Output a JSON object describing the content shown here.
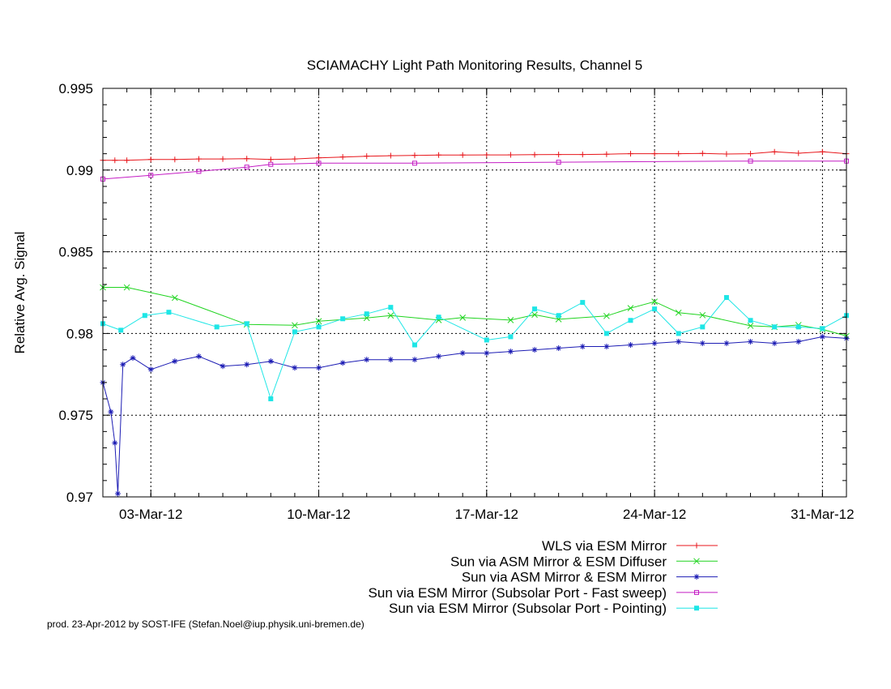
{
  "chart_data": {
    "type": "line",
    "title": "SCIAMACHY Light Path Monitoring Results, Channel 5",
    "xlabel": "",
    "ylabel": "Relative Avg. Signal",
    "xlim": [
      "2012-03-01",
      "2012-04-01"
    ],
    "ylim": [
      0.97,
      0.995
    ],
    "xticks": [
      {
        "date": "2012-03-03",
        "label": "03-Mar-12"
      },
      {
        "date": "2012-03-10",
        "label": "10-Mar-12"
      },
      {
        "date": "2012-03-17",
        "label": "17-Mar-12"
      },
      {
        "date": "2012-03-24",
        "label": "24-Mar-12"
      },
      {
        "date": "2012-03-31",
        "label": "31-Mar-12"
      }
    ],
    "yticks": [
      0.97,
      0.975,
      0.98,
      0.985,
      0.99,
      0.995
    ],
    "ytick_labels": [
      "0.97",
      "0.975",
      "0.98",
      "0.985",
      "0.99",
      "0.995"
    ],
    "grid": true,
    "legend_position": "below",
    "series": [
      {
        "name": "WLS via ESM Mirror",
        "color": "#e8161b",
        "marker": "plus",
        "points": [
          [
            "2012-03-01T00:00",
            0.9906
          ],
          [
            "2012-03-01T12:00",
            0.9906
          ],
          [
            "2012-03-02T00:00",
            0.9906
          ],
          [
            "2012-03-03T00:00",
            0.99065
          ],
          [
            "2012-03-04T00:00",
            0.99065
          ],
          [
            "2012-03-05T00:00",
            0.99068
          ],
          [
            "2012-03-06T00:00",
            0.99068
          ],
          [
            "2012-03-07T00:00",
            0.9907
          ],
          [
            "2012-03-08T00:00",
            0.99065
          ],
          [
            "2012-03-09T00:00",
            0.99068
          ],
          [
            "2012-03-10T00:00",
            0.99075
          ],
          [
            "2012-03-11T00:00",
            0.9908
          ],
          [
            "2012-03-12T00:00",
            0.99085
          ],
          [
            "2012-03-13T00:00",
            0.99088
          ],
          [
            "2012-03-14T00:00",
            0.9909
          ],
          [
            "2012-03-15T00:00",
            0.99092
          ],
          [
            "2012-03-16T00:00",
            0.99092
          ],
          [
            "2012-03-17T00:00",
            0.99093
          ],
          [
            "2012-03-18T00:00",
            0.99093
          ],
          [
            "2012-03-19T00:00",
            0.99094
          ],
          [
            "2012-03-20T00:00",
            0.99095
          ],
          [
            "2012-03-21T00:00",
            0.99095
          ],
          [
            "2012-03-22T00:00",
            0.99097
          ],
          [
            "2012-03-23T00:00",
            0.991
          ],
          [
            "2012-03-24T00:00",
            0.991
          ],
          [
            "2012-03-25T00:00",
            0.991
          ],
          [
            "2012-03-26T00:00",
            0.99102
          ],
          [
            "2012-03-27T00:00",
            0.99098
          ],
          [
            "2012-03-28T00:00",
            0.991
          ],
          [
            "2012-03-29T00:00",
            0.99112
          ],
          [
            "2012-03-30T00:00",
            0.99103
          ],
          [
            "2012-03-31T00:00",
            0.99112
          ],
          [
            "2012-04-01T00:00",
            0.991
          ]
        ]
      },
      {
        "name": "Sun via ASM Mirror & ESM Diffuser",
        "color": "#1fd41f",
        "marker": "cross",
        "points": [
          [
            "2012-03-01T00:00",
            0.98282
          ],
          [
            "2012-03-02T00:00",
            0.98282
          ],
          [
            "2012-03-04T00:00",
            0.98218
          ],
          [
            "2012-03-07T00:00",
            0.98055
          ],
          [
            "2012-03-09T00:00",
            0.9805
          ],
          [
            "2012-03-10T00:00",
            0.98075
          ],
          [
            "2012-03-12T00:00",
            0.98095
          ],
          [
            "2012-03-13T00:00",
            0.9811
          ],
          [
            "2012-03-15T00:00",
            0.98082
          ],
          [
            "2012-03-16T00:00",
            0.98097
          ],
          [
            "2012-03-18T00:00",
            0.98082
          ],
          [
            "2012-03-19T00:00",
            0.98115
          ],
          [
            "2012-03-20T00:00",
            0.98087
          ],
          [
            "2012-03-22T00:00",
            0.98107
          ],
          [
            "2012-03-23T00:00",
            0.98155
          ],
          [
            "2012-03-24T00:00",
            0.98195
          ],
          [
            "2012-03-25T00:00",
            0.98127
          ],
          [
            "2012-03-26T00:00",
            0.98112
          ],
          [
            "2012-03-28T00:00",
            0.98047
          ],
          [
            "2012-03-29T00:00",
            0.9804
          ],
          [
            "2012-03-30T00:00",
            0.98052
          ],
          [
            "2012-03-31T00:00",
            0.98025
          ],
          [
            "2012-04-01T00:00",
            0.97985
          ]
        ]
      },
      {
        "name": "Sun via ASM Mirror & ESM Mirror",
        "color": "#1c1cb4",
        "marker": "star",
        "points": [
          [
            "2012-03-01T00:00",
            0.977
          ],
          [
            "2012-03-01T08:00",
            0.9752
          ],
          [
            "2012-03-01T12:00",
            0.9733
          ],
          [
            "2012-03-01T15:00",
            0.9702
          ],
          [
            "2012-03-01T20:00",
            0.9781
          ],
          [
            "2012-03-02T06:00",
            0.9785
          ],
          [
            "2012-03-03T00:00",
            0.9778
          ],
          [
            "2012-03-04T00:00",
            0.9783
          ],
          [
            "2012-03-05T00:00",
            0.9786
          ],
          [
            "2012-03-06T00:00",
            0.978
          ],
          [
            "2012-03-07T00:00",
            0.9781
          ],
          [
            "2012-03-08T00:00",
            0.9783
          ],
          [
            "2012-03-09T00:00",
            0.9779
          ],
          [
            "2012-03-10T00:00",
            0.9779
          ],
          [
            "2012-03-11T00:00",
            0.9782
          ],
          [
            "2012-03-12T00:00",
            0.9784
          ],
          [
            "2012-03-13T00:00",
            0.9784
          ],
          [
            "2012-03-14T00:00",
            0.9784
          ],
          [
            "2012-03-15T00:00",
            0.9786
          ],
          [
            "2012-03-16T00:00",
            0.9788
          ],
          [
            "2012-03-17T00:00",
            0.9788
          ],
          [
            "2012-03-18T00:00",
            0.9789
          ],
          [
            "2012-03-19T00:00",
            0.979
          ],
          [
            "2012-03-20T00:00",
            0.9791
          ],
          [
            "2012-03-21T00:00",
            0.9792
          ],
          [
            "2012-03-22T00:00",
            0.9792
          ],
          [
            "2012-03-23T00:00",
            0.9793
          ],
          [
            "2012-03-24T00:00",
            0.9794
          ],
          [
            "2012-03-25T00:00",
            0.9795
          ],
          [
            "2012-03-26T00:00",
            0.9794
          ],
          [
            "2012-03-27T00:00",
            0.9794
          ],
          [
            "2012-03-28T00:00",
            0.9795
          ],
          [
            "2012-03-29T00:00",
            0.9794
          ],
          [
            "2012-03-30T00:00",
            0.9795
          ],
          [
            "2012-03-31T00:00",
            0.9798
          ],
          [
            "2012-04-01T00:00",
            0.9797
          ]
        ]
      },
      {
        "name": "Sun via ESM Mirror (Subsolar Port - Fast sweep)",
        "color": "#c41cc4",
        "marker": "square-open",
        "points": [
          [
            "2012-03-01T00:00",
            0.98945
          ],
          [
            "2012-03-03T00:00",
            0.98968
          ],
          [
            "2012-03-05T00:00",
            0.98992
          ],
          [
            "2012-03-07T00:00",
            0.99018
          ],
          [
            "2012-03-08T00:00",
            0.99035
          ],
          [
            "2012-03-10T00:00",
            0.99042
          ],
          [
            "2012-03-14T00:00",
            0.99042
          ],
          [
            "2012-03-20T00:00",
            0.99048
          ],
          [
            "2012-03-28T00:00",
            0.99055
          ],
          [
            "2012-04-01T00:00",
            0.99055
          ]
        ]
      },
      {
        "name": "Sun via ESM Mirror (Subsolar Port - Pointing)",
        "color": "#1ee6e6",
        "marker": "square-filled",
        "points": [
          [
            "2012-03-01T00:00",
            0.9806
          ],
          [
            "2012-03-01T18:00",
            0.9802
          ],
          [
            "2012-03-02T18:00",
            0.9811
          ],
          [
            "2012-03-03T18:00",
            0.9813
          ],
          [
            "2012-03-05T18:00",
            0.9804
          ],
          [
            "2012-03-07T00:00",
            0.9806
          ],
          [
            "2012-03-08T00:00",
            0.976
          ],
          [
            "2012-03-09T00:00",
            0.9801
          ],
          [
            "2012-03-10T00:00",
            0.9804
          ],
          [
            "2012-03-11T00:00",
            0.9809
          ],
          [
            "2012-03-12T00:00",
            0.9812
          ],
          [
            "2012-03-13T00:00",
            0.9816
          ],
          [
            "2012-03-14T00:00",
            0.9793
          ],
          [
            "2012-03-15T00:00",
            0.981
          ],
          [
            "2012-03-17T00:00",
            0.9796
          ],
          [
            "2012-03-18T00:00",
            0.9798
          ],
          [
            "2012-03-19T00:00",
            0.9815
          ],
          [
            "2012-03-20T00:00",
            0.9811
          ],
          [
            "2012-03-21T00:00",
            0.9819
          ],
          [
            "2012-03-22T00:00",
            0.98
          ],
          [
            "2012-03-23T00:00",
            0.9808
          ],
          [
            "2012-03-24T00:00",
            0.9815
          ],
          [
            "2012-03-25T00:00",
            0.98
          ],
          [
            "2012-03-26T00:00",
            0.9804
          ],
          [
            "2012-03-27T00:00",
            0.9822
          ],
          [
            "2012-03-28T00:00",
            0.9808
          ],
          [
            "2012-03-29T00:00",
            0.9804
          ],
          [
            "2012-03-30T00:00",
            0.9804
          ],
          [
            "2012-03-31T00:00",
            0.9803
          ],
          [
            "2012-04-01T00:00",
            0.9811
          ]
        ]
      }
    ]
  },
  "footer": "prod. 23-Apr-2012 by SOST-IFE (Stefan.Noel@iup.physik.uni-bremen.de)"
}
